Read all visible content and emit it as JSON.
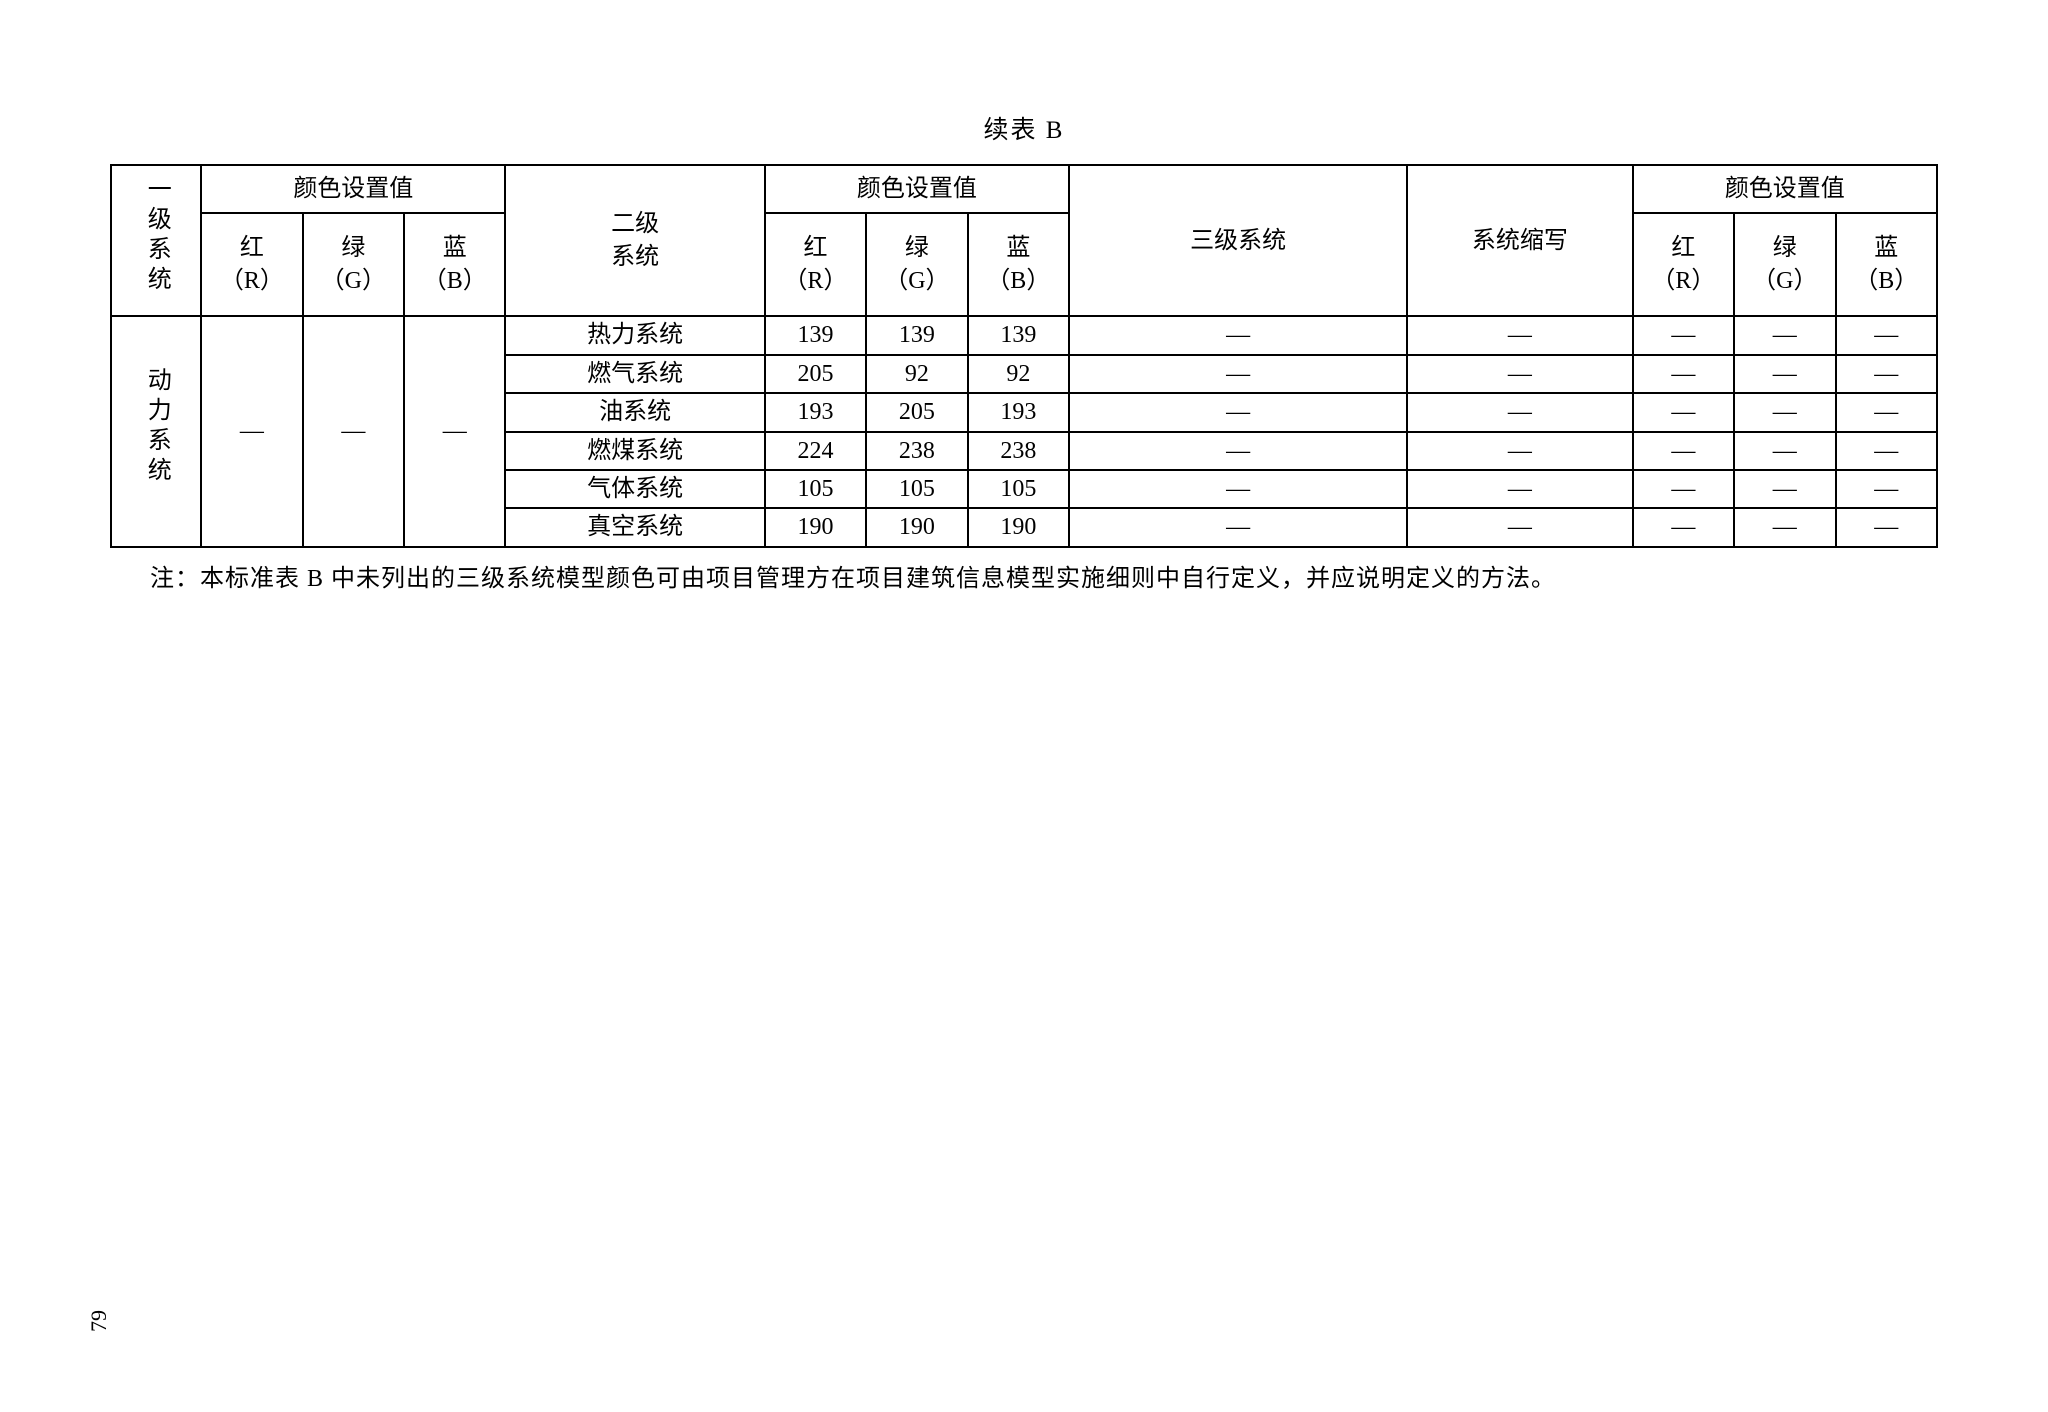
{
  "caption": "续表 B",
  "headers": {
    "level1_system": "一级系统",
    "color_setting": "颜色设置值",
    "red": "红（R）",
    "green": "绿（G）",
    "blue": "蓝（B）",
    "level2_system": "二级系统",
    "level3_system": "三级系统",
    "system_abbr": "系统缩写"
  },
  "level1": {
    "name": "动力系统",
    "r": "—",
    "g": "—",
    "b": "—"
  },
  "rows": [
    {
      "l2": "热力系统",
      "r": "139",
      "g": "139",
      "b": "139",
      "l3": "—",
      "abbr": "—",
      "r3": "—",
      "g3": "—",
      "b3": "—"
    },
    {
      "l2": "燃气系统",
      "r": "205",
      "g": "92",
      "b": "92",
      "l3": "—",
      "abbr": "—",
      "r3": "—",
      "g3": "—",
      "b3": "—"
    },
    {
      "l2": "油系统",
      "r": "193",
      "g": "205",
      "b": "193",
      "l3": "—",
      "abbr": "—",
      "r3": "—",
      "g3": "—",
      "b3": "—"
    },
    {
      "l2": "燃煤系统",
      "r": "224",
      "g": "238",
      "b": "238",
      "l3": "—",
      "abbr": "—",
      "r3": "—",
      "g3": "—",
      "b3": "—"
    },
    {
      "l2": "气体系统",
      "r": "105",
      "g": "105",
      "b": "105",
      "l3": "—",
      "abbr": "—",
      "r3": "—",
      "g3": "—",
      "b3": "—"
    },
    {
      "l2": "真空系统",
      "r": "190",
      "g": "190",
      "b": "190",
      "l3": "—",
      "abbr": "—",
      "r3": "—",
      "g3": "—",
      "b3": "—"
    }
  ],
  "note": "注：本标准表 B 中未列出的三级系统模型颜色可由项目管理方在项目建筑信息模型实施细则中自行定义，并应说明定义的方法。",
  "page_number": "79"
}
